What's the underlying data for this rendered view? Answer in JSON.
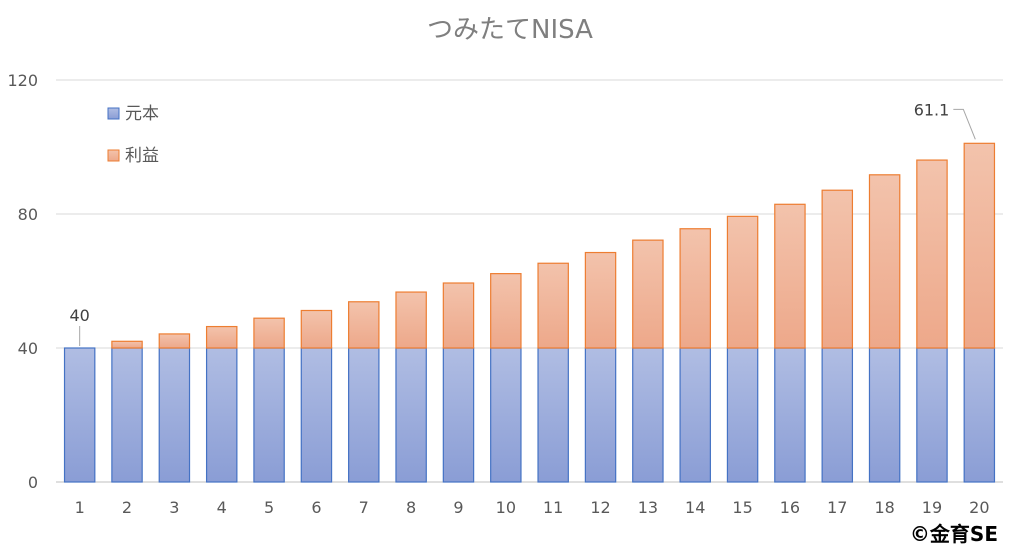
{
  "chart_data": {
    "type": "bar",
    "stacked": true,
    "title": "つみたてNISA",
    "categories": [
      "1",
      "2",
      "3",
      "4",
      "5",
      "6",
      "7",
      "8",
      "9",
      "10",
      "11",
      "12",
      "13",
      "14",
      "15",
      "16",
      "17",
      "18",
      "19",
      "20"
    ],
    "series": [
      {
        "name": "元本",
        "color": "#8ea1d6",
        "values": [
          40,
          40,
          40,
          40,
          40,
          40,
          40,
          40,
          40,
          40,
          40,
          40,
          40,
          40,
          40,
          40,
          40,
          40,
          40,
          40
        ]
      },
      {
        "name": "利益",
        "color": "#f0b397",
        "values": [
          0,
          2,
          4.2,
          6.4,
          8.9,
          11.2,
          13.8,
          16.7,
          19.4,
          22.2,
          25.3,
          28.5,
          32.2,
          35.6,
          39.3,
          42.9,
          47.1,
          51.7,
          56.1,
          61.1
        ]
      }
    ],
    "ylim": [
      0,
      120
    ],
    "yticks": [
      0,
      40,
      80,
      120
    ],
    "grid": true,
    "legend": "top-left",
    "annotations": [
      {
        "category": "1",
        "text": "40"
      },
      {
        "category": "20",
        "text": "61.1"
      }
    ]
  },
  "credit": "©金育SE"
}
